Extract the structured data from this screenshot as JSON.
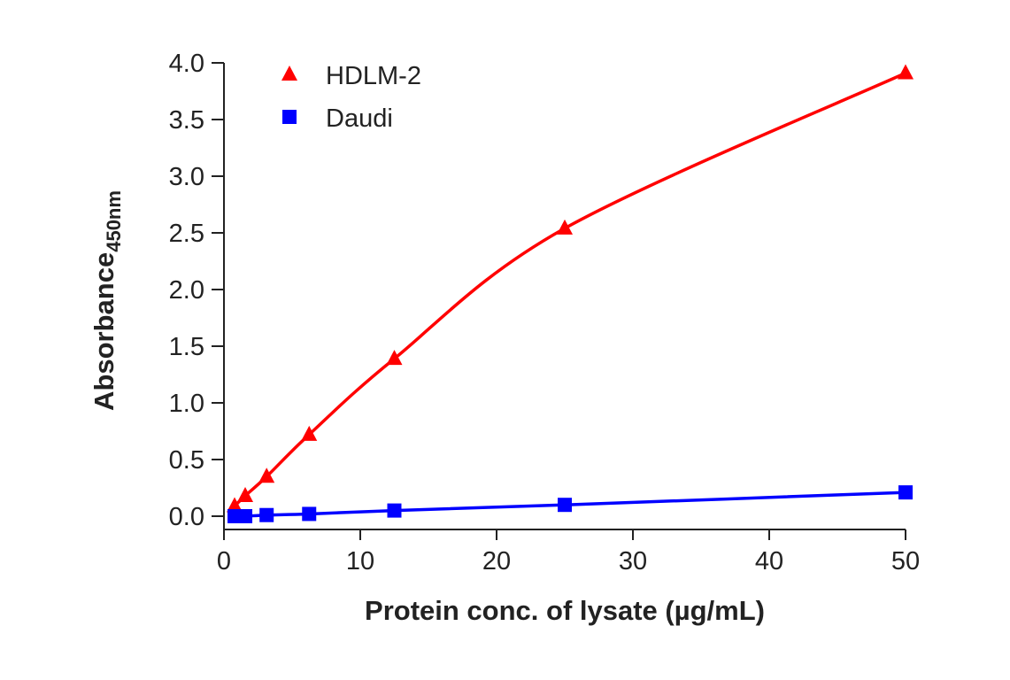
{
  "chart_data": {
    "type": "line",
    "xlabel": "Protein conc. of lysate (µg/mL)",
    "ylabel": "Absorbance",
    "ylabel_subscript": "450nm",
    "xlim": [
      0,
      50
    ],
    "ylim": [
      0,
      4.0
    ],
    "x_ticks": [
      0,
      10,
      20,
      30,
      40,
      50
    ],
    "x_tick_labels": [
      "0",
      "10",
      "20",
      "30",
      "40",
      "50"
    ],
    "y_ticks": [
      0,
      0.5,
      1.0,
      1.5,
      2.0,
      2.5,
      3.0,
      3.5,
      4.0
    ],
    "y_tick_labels": [
      "0.0",
      "0.5",
      "1.0",
      "1.5",
      "2.0",
      "2.5",
      "3.0",
      "3.5",
      "4.0"
    ],
    "grid": false,
    "legend_position": "top-left",
    "series": [
      {
        "name": "HDLM-2",
        "color": "#ff0000",
        "marker": "triangle",
        "x": [
          0.78,
          1.56,
          3.13,
          6.25,
          12.5,
          25,
          50
        ],
        "y": [
          0.09,
          0.18,
          0.35,
          0.72,
          1.39,
          2.54,
          3.91
        ]
      },
      {
        "name": "Daudi",
        "color": "#0000ff",
        "marker": "square",
        "x": [
          0.78,
          1.56,
          3.13,
          6.25,
          12.5,
          25,
          50
        ],
        "y": [
          0.0,
          0.0,
          0.01,
          0.02,
          0.05,
          0.1,
          0.21
        ]
      }
    ]
  }
}
